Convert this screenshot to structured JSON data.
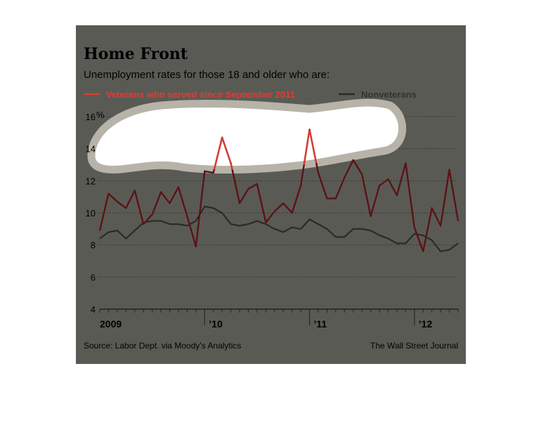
{
  "chart_data": {
    "type": "line",
    "title": "Home Front",
    "subtitle": "Unemployment rates for those 18 and older who are:",
    "y_unit": "%",
    "ylim": [
      4,
      16
    ],
    "yticks": [
      4,
      6,
      8,
      10,
      12,
      14,
      16
    ],
    "ytick_labels": [
      "4",
      "6",
      "8",
      "10",
      "12",
      "14",
      "16"
    ],
    "x_labels": [
      "2009",
      "’10",
      "’11",
      "’12"
    ],
    "x_range": [
      "2009-01",
      "2012-06"
    ],
    "x_ticks": [
      "2009-01",
      "2010-01",
      "2011-01",
      "2012-01"
    ],
    "grid": true,
    "legend_placement": "top",
    "series": [
      {
        "name": "Veterans who served since September 2011",
        "color": "#e23b32",
        "points": [
          [
            "2009-01",
            8.9
          ],
          [
            "2009-02",
            11.2
          ],
          [
            "2009-03",
            10.7
          ],
          [
            "2009-04",
            10.3
          ],
          [
            "2009-05",
            11.4
          ],
          [
            "2009-06",
            9.3
          ],
          [
            "2009-07",
            9.9
          ],
          [
            "2009-08",
            11.3
          ],
          [
            "2009-09",
            10.6
          ],
          [
            "2009-10",
            11.6
          ],
          [
            "2009-11",
            9.8
          ],
          [
            "2009-12",
            7.9
          ],
          [
            "2010-01",
            12.6
          ],
          [
            "2010-02",
            12.5
          ],
          [
            "2010-03",
            14.7
          ],
          [
            "2010-04",
            13.1
          ],
          [
            "2010-05",
            10.6
          ],
          [
            "2010-06",
            11.5
          ],
          [
            "2010-07",
            11.8
          ],
          [
            "2010-08",
            9.4
          ],
          [
            "2010-09",
            10.1
          ],
          [
            "2010-10",
            10.6
          ],
          [
            "2010-11",
            10.0
          ],
          [
            "2010-12",
            11.7
          ],
          [
            "2011-01",
            15.2
          ],
          [
            "2011-02",
            12.5
          ],
          [
            "2011-03",
            10.9
          ],
          [
            "2011-04",
            10.9
          ],
          [
            "2011-05",
            12.2
          ],
          [
            "2011-06",
            13.3
          ],
          [
            "2011-07",
            12.4
          ],
          [
            "2011-08",
            9.8
          ],
          [
            "2011-09",
            11.7
          ],
          [
            "2011-10",
            12.1
          ],
          [
            "2011-11",
            11.1
          ],
          [
            "2011-12",
            13.1
          ],
          [
            "2012-01",
            9.1
          ],
          [
            "2012-02",
            7.6
          ],
          [
            "2012-03",
            10.3
          ],
          [
            "2012-04",
            9.2
          ],
          [
            "2012-05",
            12.7
          ],
          [
            "2012-06",
            9.5
          ]
        ]
      },
      {
        "name": "Nonveterans",
        "color": "#333333",
        "points": [
          [
            "2009-01",
            8.4
          ],
          [
            "2009-02",
            8.8
          ],
          [
            "2009-03",
            8.9
          ],
          [
            "2009-04",
            8.4
          ],
          [
            "2009-05",
            8.9
          ],
          [
            "2009-06",
            9.4
          ],
          [
            "2009-07",
            9.5
          ],
          [
            "2009-08",
            9.5
          ],
          [
            "2009-09",
            9.3
          ],
          [
            "2009-10",
            9.3
          ],
          [
            "2009-11",
            9.2
          ],
          [
            "2009-12",
            9.5
          ],
          [
            "2010-01",
            10.4
          ],
          [
            "2010-02",
            10.3
          ],
          [
            "2010-03",
            10.0
          ],
          [
            "2010-04",
            9.3
          ],
          [
            "2010-05",
            9.2
          ],
          [
            "2010-06",
            9.3
          ],
          [
            "2010-07",
            9.5
          ],
          [
            "2010-08",
            9.3
          ],
          [
            "2010-09",
            9.0
          ],
          [
            "2010-10",
            8.8
          ],
          [
            "2010-11",
            9.1
          ],
          [
            "2010-12",
            9.0
          ],
          [
            "2011-01",
            9.6
          ],
          [
            "2011-02",
            9.3
          ],
          [
            "2011-03",
            9.0
          ],
          [
            "2011-04",
            8.5
          ],
          [
            "2011-05",
            8.5
          ],
          [
            "2011-06",
            9.0
          ],
          [
            "2011-07",
            9.0
          ],
          [
            "2011-08",
            8.9
          ],
          [
            "2011-09",
            8.6
          ],
          [
            "2011-10",
            8.4
          ],
          [
            "2011-11",
            8.1
          ],
          [
            "2011-12",
            8.1
          ],
          [
            "2012-01",
            8.7
          ],
          [
            "2012-02",
            8.6
          ],
          [
            "2012-03",
            8.3
          ],
          [
            "2012-04",
            7.6
          ],
          [
            "2012-05",
            7.7
          ],
          [
            "2012-06",
            8.1
          ]
        ]
      }
    ]
  },
  "footer": {
    "source": "Source: Labor Dept. via Moody's Analytics",
    "credit": "The Wall Street Journal"
  },
  "colors": {
    "panel": "#5a5a55",
    "blob_fill": "#ffffff",
    "blob_border": "#b7b3a9",
    "text": "#000000",
    "grid": "#2a2a2a"
  }
}
